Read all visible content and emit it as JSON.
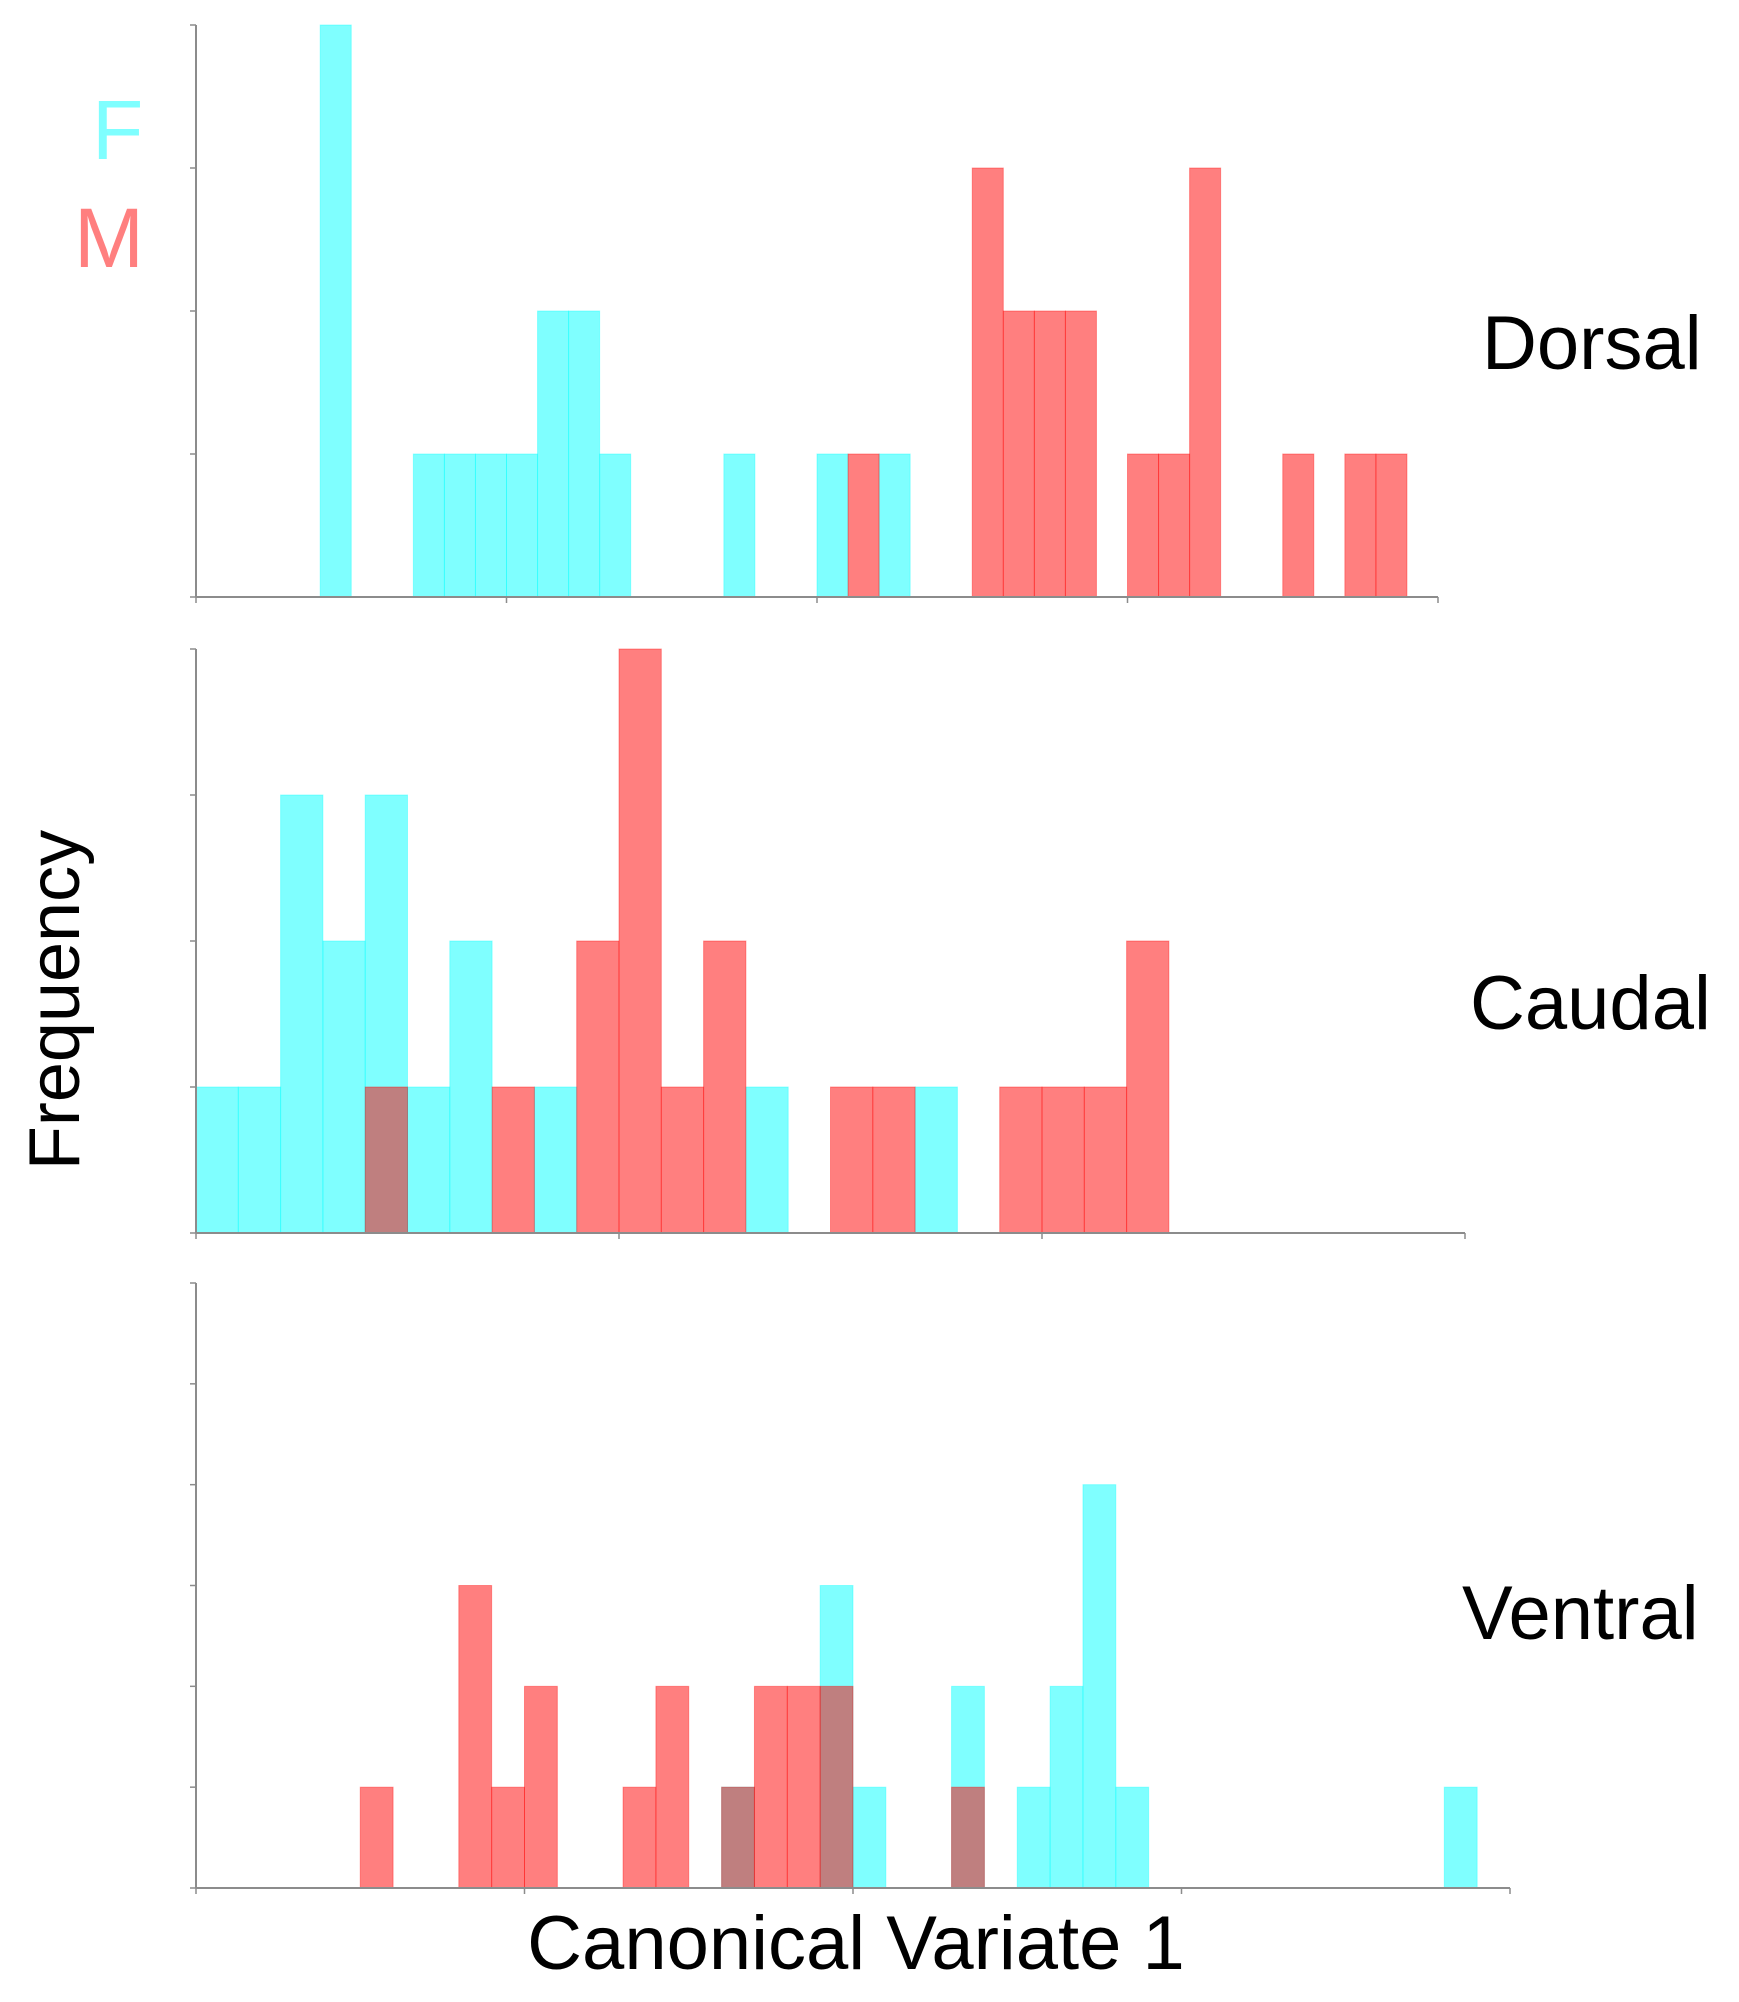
{
  "chart_data": {
    "type": "bar",
    "subtype": "overlaid histograms",
    "xlabel": "Canonical Variate 1",
    "ylabel": "Frequency",
    "grid": false,
    "legend": {
      "placement": "top-left",
      "entries": [
        {
          "name": "F",
          "color": "#00ffff"
        },
        {
          "name": "M",
          "color": "#ff0000"
        }
      ]
    },
    "series_colors": {
      "F": "#00ffff",
      "M": "#ff0000"
    },
    "bar_opacity": 0.5,
    "panels": [
      {
        "name": "Dorsal",
        "bins": 40,
        "ylim": [
          0,
          4
        ],
        "series": [
          {
            "name": "F",
            "values": [
              0,
              0,
              0,
              0,
              4,
              0,
              0,
              1,
              1,
              1,
              1,
              2,
              2,
              1,
              0,
              0,
              0,
              1,
              0,
              0,
              1,
              0,
              1,
              0,
              0,
              0,
              0,
              0,
              0,
              0,
              0,
              0,
              0,
              0,
              0,
              0,
              0,
              0,
              0,
              0
            ]
          },
          {
            "name": "M",
            "values": [
              0,
              0,
              0,
              0,
              0,
              0,
              0,
              0,
              0,
              0,
              0,
              0,
              0,
              0,
              0,
              0,
              0,
              0,
              0,
              0,
              0,
              1,
              0,
              0,
              0,
              3,
              2,
              2,
              2,
              0,
              1,
              1,
              3,
              0,
              0,
              1,
              0,
              1,
              1,
              0
            ]
          }
        ]
      },
      {
        "name": "Caudal",
        "bins": 30,
        "ylim": [
          0,
          4
        ],
        "series": [
          {
            "name": "F",
            "values": [
              1,
              1,
              3,
              2,
              3,
              1,
              2,
              0,
              1,
              0,
              0,
              0,
              0,
              1,
              0,
              0,
              0,
              1,
              0,
              0,
              0,
              0,
              0,
              0,
              0,
              0,
              0,
              0,
              0,
              0
            ]
          },
          {
            "name": "M",
            "values": [
              0,
              0,
              0,
              0,
              1,
              0,
              0,
              1,
              0,
              2,
              4,
              1,
              2,
              0,
              0,
              1,
              1,
              0,
              0,
              1,
              1,
              1,
              2,
              0,
              0,
              0,
              0,
              0,
              0,
              0
            ]
          }
        ]
      },
      {
        "name": "Ventral",
        "bins": 40,
        "ylim": [
          0,
          6
        ],
        "series": [
          {
            "name": "F",
            "values": [
              0,
              0,
              0,
              0,
              0,
              0,
              0,
              0,
              0,
              0,
              0,
              0,
              0,
              0,
              0,
              0,
              1,
              0,
              0,
              3,
              1,
              0,
              0,
              2,
              0,
              1,
              2,
              4,
              1,
              0,
              0,
              0,
              0,
              0,
              0,
              0,
              0,
              0,
              1,
              0
            ]
          },
          {
            "name": "M",
            "values": [
              0,
              0,
              0,
              0,
              0,
              1,
              0,
              0,
              3,
              1,
              2,
              0,
              0,
              1,
              2,
              0,
              1,
              2,
              2,
              2,
              0,
              0,
              0,
              1,
              0,
              0,
              0,
              0,
              0,
              0,
              0,
              0,
              0,
              0,
              0,
              0,
              0,
              0,
              0,
              0
            ]
          }
        ]
      }
    ]
  }
}
